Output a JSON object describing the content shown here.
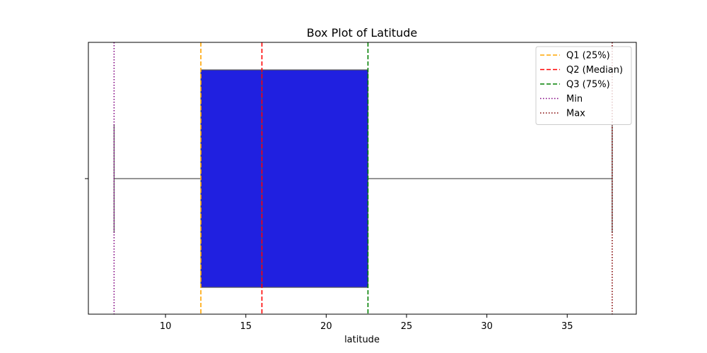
{
  "chart_data": {
    "type": "box",
    "title": "Box Plot of Latitude",
    "xlabel": "latitude",
    "ylabel": "",
    "xlim": [
      5.2,
      39.3
    ],
    "xticks": [
      10,
      15,
      20,
      25,
      30,
      35
    ],
    "xtick_labels": [
      "10",
      "15",
      "20",
      "25",
      "30",
      "35"
    ],
    "grid": false,
    "legend_position": "top-right",
    "box": {
      "min": 6.8,
      "q1": 12.2,
      "median": 16.0,
      "q3": 22.6,
      "max": 37.8,
      "fill_color": "#2020e0",
      "edge_color": "#555555"
    },
    "reference_lines": [
      {
        "name": "Q1 (25%)",
        "value": 12.2,
        "color": "#ffa500",
        "style": "dashed"
      },
      {
        "name": "Q2 (Median)",
        "value": 16.0,
        "color": "#ff0000",
        "style": "dashed"
      },
      {
        "name": "Q3 (75%)",
        "value": 22.6,
        "color": "#008000",
        "style": "dashed"
      },
      {
        "name": "Min",
        "value": 6.8,
        "color": "#800080",
        "style": "dotted"
      },
      {
        "name": "Max",
        "value": 37.8,
        "color": "#800000",
        "style": "dotted"
      }
    ]
  }
}
